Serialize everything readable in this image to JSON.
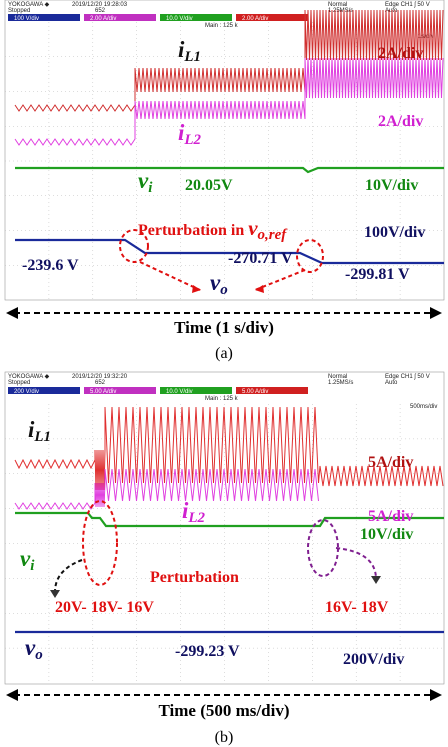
{
  "panel_a": {
    "header": {
      "brand": "YOKOGAWA ◆",
      "status": "Stopped",
      "timestamp": "2019/12/20 19:28:03",
      "count": "652",
      "mode": "Normal",
      "rate": "1.25MS/s",
      "trigger": "Edge CH1 ʃ 50 V",
      "trigger_mode": "Auto",
      "memory": "Main : 125 k",
      "timebase": "1s/div"
    },
    "channels": [
      "100 V/div",
      "2.00 A/div",
      "10.0 V/div",
      "2.00 A/div"
    ],
    "labels": {
      "il1": {
        "main": "i",
        "sub": "L1"
      },
      "il1_scale": "2A/div",
      "il2": {
        "main": "i",
        "sub": "L2"
      },
      "il2_scale": "2A/div",
      "vi": {
        "main": "v",
        "sub": "i"
      },
      "vi_value": "20.05V",
      "vi_scale": "10V/div",
      "perturbation": {
        "text": "Perturbation in ",
        "main": "v",
        "sub": "o,ref"
      },
      "vo_scale": "100V/div",
      "vo_mid": "-270.71 V",
      "vo_start": "-239.6 V",
      "vo_end": "-299.81 V",
      "vo": {
        "main": "v",
        "sub": "o"
      }
    },
    "time_axis": "Time (1 s/div)",
    "caption": "(a)"
  },
  "panel_b": {
    "header": {
      "brand": "YOKOGAWA ◆",
      "status": "Stopped",
      "timestamp": "2019/12/20 19:32:20",
      "count": "652",
      "mode": "Normal",
      "rate": "1.25MS/s",
      "trigger": "Edge CH1 ʃ 50 V",
      "trigger_mode": "Auto",
      "memory": "Main : 125 k",
      "timebase": "500ms/div"
    },
    "channels": [
      "200 V/div",
      "5.00 A/div",
      "10.0 V/div",
      "5.00 A/div"
    ],
    "labels": {
      "il1": {
        "main": "i",
        "sub": "L1"
      },
      "il1_scale": "5A/div",
      "il2": {
        "main": "i",
        "sub": "L2"
      },
      "il2_scale": "5A/div",
      "vi": {
        "main": "v",
        "sub": "i"
      },
      "vi_scale": "10V/div",
      "perturbation": "Perturbation",
      "step_down": "20V- 18V- 16V",
      "step_up": "16V- 18V",
      "vo": {
        "main": "v",
        "sub": "o"
      },
      "vo_value": "-299.23 V",
      "vo_scale": "200V/div"
    },
    "time_axis": "Time (500 ms/div)",
    "caption": "(b)"
  }
}
